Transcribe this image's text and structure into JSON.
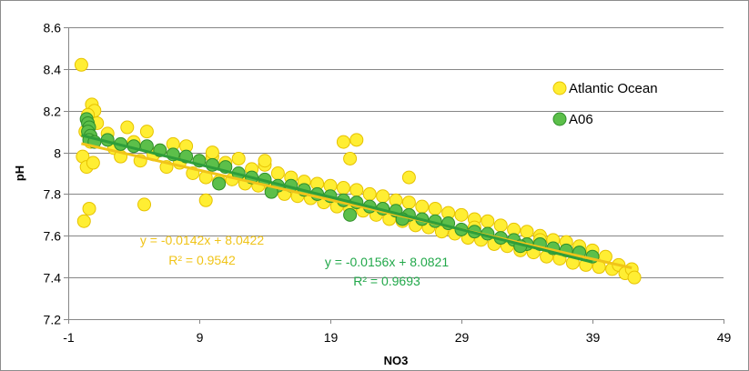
{
  "chart_data": {
    "type": "scatter",
    "xlabel": "NO3",
    "ylabel": "pH",
    "xlim": [
      -1,
      49
    ],
    "ylim": [
      7.2,
      8.6
    ],
    "x_ticks": [
      -1,
      9,
      19,
      29,
      39,
      49
    ],
    "x_tick_labels": [
      "-1",
      "9",
      "19",
      "29",
      "39",
      "49"
    ],
    "y_ticks": [
      7.2,
      7.4,
      7.6,
      7.8,
      8.0,
      8.2,
      8.4,
      8.6
    ],
    "y_tick_labels": [
      "7.2",
      "7.4",
      "7.6",
      "7.8",
      "8",
      "8.2",
      "8.4",
      "8.6"
    ],
    "grid": "horizontal",
    "legend_position": "right",
    "series": [
      {
        "name": "Atlantic Ocean",
        "color": "#ffee33",
        "edge_color": "#e6c200",
        "trendline": {
          "slope": -0.0142,
          "intercept": 8.0422,
          "x_range": [
            0,
            42
          ],
          "color": "#f0c419"
        },
        "equation": "y = -0.0142x + 8.0422",
        "r2": "R² = 0.9542",
        "label_color": "#f0c419",
        "points": [
          [
            0.0,
            8.42
          ],
          [
            0.2,
            7.67
          ],
          [
            0.6,
            7.73
          ],
          [
            0.8,
            8.23
          ],
          [
            1.0,
            8.2
          ],
          [
            0.5,
            8.18
          ],
          [
            0.3,
            8.1
          ],
          [
            0.7,
            8.05
          ],
          [
            1.2,
            8.14
          ],
          [
            0.1,
            7.98
          ],
          [
            0.4,
            7.93
          ],
          [
            0.9,
            7.95
          ],
          [
            2.0,
            8.09
          ],
          [
            2.5,
            8.02
          ],
          [
            3.0,
            7.98
          ],
          [
            3.5,
            8.12
          ],
          [
            4.0,
            8.05
          ],
          [
            4.5,
            7.96
          ],
          [
            5.0,
            8.1
          ],
          [
            5.5,
            7.99
          ],
          [
            6.0,
            8.01
          ],
          [
            6.5,
            7.93
          ],
          [
            7.0,
            8.04
          ],
          [
            7.5,
            7.95
          ],
          [
            8.0,
            8.03
          ],
          [
            8.5,
            7.9
          ],
          [
            9.0,
            7.96
          ],
          [
            9.5,
            7.88
          ],
          [
            10.0,
            7.98
          ],
          [
            10.5,
            7.86
          ],
          [
            11.0,
            7.95
          ],
          [
            11.5,
            7.87
          ],
          [
            12.0,
            7.97
          ],
          [
            12.5,
            7.85
          ],
          [
            13.0,
            7.92
          ],
          [
            13.5,
            7.84
          ],
          [
            14.0,
            7.94
          ],
          [
            14.5,
            7.82
          ],
          [
            15.0,
            7.9
          ],
          [
            15.5,
            7.8
          ],
          [
            16.0,
            7.88
          ],
          [
            16.5,
            7.79
          ],
          [
            17.0,
            7.86
          ],
          [
            17.5,
            7.78
          ],
          [
            18.0,
            7.85
          ],
          [
            18.5,
            7.76
          ],
          [
            19.0,
            7.84
          ],
          [
            19.5,
            7.74
          ],
          [
            20.0,
            7.83
          ],
          [
            20.5,
            7.73
          ],
          [
            21.0,
            7.82
          ],
          [
            21.5,
            7.72
          ],
          [
            22.0,
            7.8
          ],
          [
            22.5,
            7.7
          ],
          [
            23.0,
            7.79
          ],
          [
            23.5,
            7.68
          ],
          [
            24.0,
            7.77
          ],
          [
            24.5,
            7.67
          ],
          [
            25.0,
            7.76
          ],
          [
            25.5,
            7.65
          ],
          [
            26.0,
            7.74
          ],
          [
            26.5,
            7.64
          ],
          [
            27.0,
            7.73
          ],
          [
            27.5,
            7.62
          ],
          [
            28.0,
            7.71
          ],
          [
            28.5,
            7.61
          ],
          [
            29.0,
            7.7
          ],
          [
            29.5,
            7.59
          ],
          [
            30.0,
            7.68
          ],
          [
            30.5,
            7.58
          ],
          [
            31.0,
            7.67
          ],
          [
            31.5,
            7.56
          ],
          [
            32.0,
            7.65
          ],
          [
            32.5,
            7.55
          ],
          [
            33.0,
            7.63
          ],
          [
            33.5,
            7.53
          ],
          [
            34.0,
            7.62
          ],
          [
            34.5,
            7.52
          ],
          [
            35.0,
            7.6
          ],
          [
            35.5,
            7.5
          ],
          [
            36.0,
            7.58
          ],
          [
            36.5,
            7.49
          ],
          [
            37.0,
            7.57
          ],
          [
            37.5,
            7.47
          ],
          [
            38.0,
            7.55
          ],
          [
            38.5,
            7.46
          ],
          [
            39.0,
            7.53
          ],
          [
            39.5,
            7.45
          ],
          [
            40.0,
            7.5
          ],
          [
            40.5,
            7.44
          ],
          [
            41.0,
            7.46
          ],
          [
            41.5,
            7.42
          ],
          [
            42.0,
            7.44
          ],
          [
            42.2,
            7.4
          ],
          [
            4.8,
            7.75
          ],
          [
            10.0,
            8.0
          ],
          [
            14.0,
            7.96
          ],
          [
            20.0,
            8.05
          ],
          [
            21.0,
            8.06
          ],
          [
            20.5,
            7.97
          ],
          [
            25.0,
            7.88
          ],
          [
            9.5,
            7.77
          ],
          [
            30.0,
            7.64
          ],
          [
            35.0,
            7.58
          ]
        ]
      },
      {
        "name": "A06",
        "color": "#5cbf4a",
        "edge_color": "#2f8f2a",
        "trendline": {
          "slope": -0.0156,
          "intercept": 8.0821,
          "x_range": [
            0,
            39
          ],
          "color": "#2e9e3a"
        },
        "equation": "y = -0.0156x + 8.0821",
        "r2": "R² = 0.9693",
        "label_color": "#22a84a",
        "points": [
          [
            0.4,
            8.16
          ],
          [
            0.5,
            8.14
          ],
          [
            0.6,
            8.12
          ],
          [
            0.5,
            8.1
          ],
          [
            0.7,
            8.08
          ],
          [
            0.6,
            8.06
          ],
          [
            1.0,
            8.05
          ],
          [
            2.0,
            8.06
          ],
          [
            3.0,
            8.04
          ],
          [
            4.0,
            8.03
          ],
          [
            5.0,
            8.03
          ],
          [
            6.0,
            8.01
          ],
          [
            7.0,
            7.99
          ],
          [
            8.0,
            7.98
          ],
          [
            9.0,
            7.96
          ],
          [
            10.0,
            7.94
          ],
          [
            11.0,
            7.93
          ],
          [
            12.0,
            7.9
          ],
          [
            13.0,
            7.88
          ],
          [
            14.0,
            7.87
          ],
          [
            15.0,
            7.84
          ],
          [
            16.0,
            7.84
          ],
          [
            17.0,
            7.82
          ],
          [
            18.0,
            7.8
          ],
          [
            19.0,
            7.79
          ],
          [
            20.0,
            7.77
          ],
          [
            21.0,
            7.76
          ],
          [
            22.0,
            7.74
          ],
          [
            23.0,
            7.73
          ],
          [
            24.0,
            7.72
          ],
          [
            25.0,
            7.7
          ],
          [
            26.0,
            7.68
          ],
          [
            27.0,
            7.67
          ],
          [
            28.0,
            7.66
          ],
          [
            29.0,
            7.63
          ],
          [
            30.0,
            7.62
          ],
          [
            31.0,
            7.61
          ],
          [
            32.0,
            7.59
          ],
          [
            33.0,
            7.58
          ],
          [
            34.0,
            7.56
          ],
          [
            35.0,
            7.56
          ],
          [
            36.0,
            7.54
          ],
          [
            37.0,
            7.53
          ],
          [
            38.0,
            7.52
          ],
          [
            39.0,
            7.5
          ],
          [
            10.5,
            7.85
          ],
          [
            14.5,
            7.81
          ],
          [
            20.5,
            7.7
          ],
          [
            24.5,
            7.68
          ],
          [
            33.5,
            7.55
          ]
        ]
      }
    ]
  }
}
